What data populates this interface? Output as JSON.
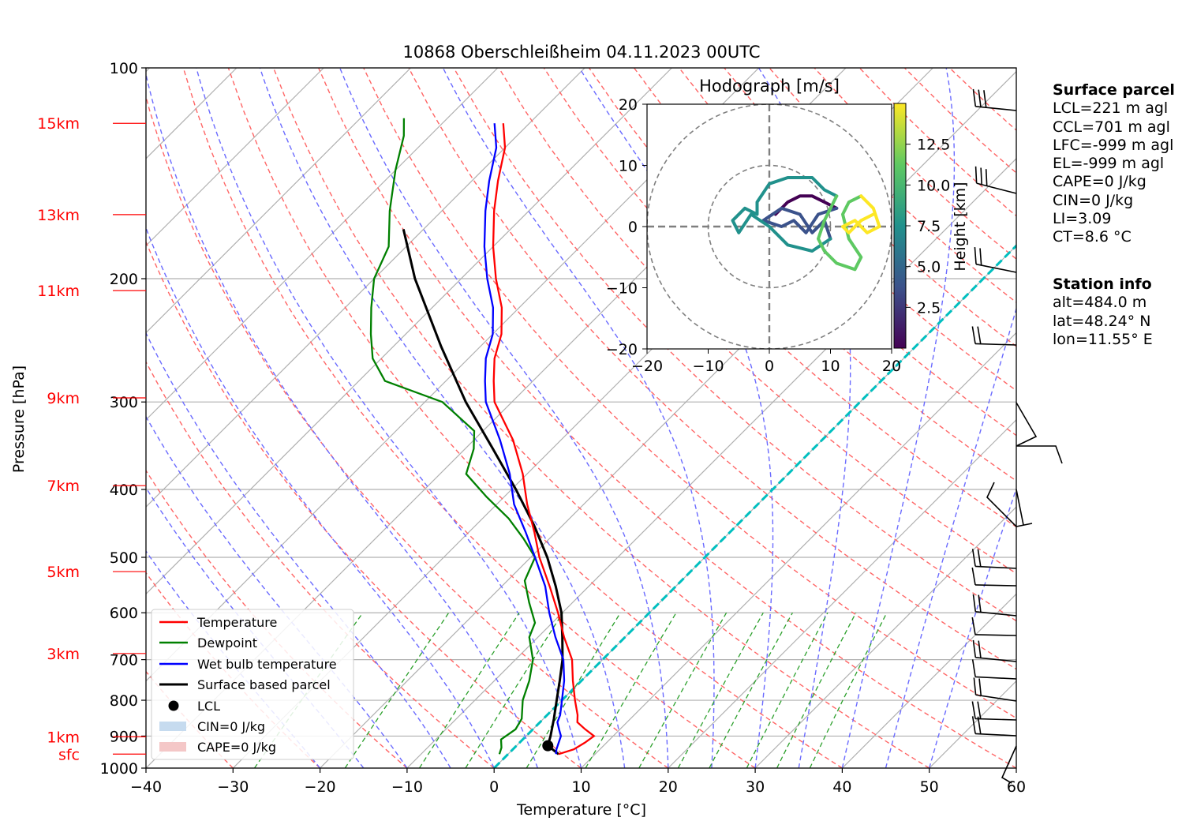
{
  "title": "10868 Oberschleißheim 04.11.2023 00UTC",
  "axes": {
    "xlabel": "Temperature [°C]",
    "ylabel": "Pressure [hPa]",
    "x_ticks": [
      "−40",
      "−30",
      "−20",
      "−10",
      "0",
      "10",
      "20",
      "30",
      "40",
      "50",
      "60"
    ],
    "y_ticks": [
      "100",
      "200",
      "300",
      "400",
      "500",
      "600",
      "700",
      "800",
      "900",
      "1000"
    ],
    "height_ticks": [
      "15km",
      "13km",
      "11km",
      "9km",
      "7km",
      "5km",
      "3km",
      "1km",
      "sfc"
    ]
  },
  "colors": {
    "temperature": "#ff0000",
    "dewpoint": "#008000",
    "wetbulb": "#0000ff",
    "parcel": "#000000",
    "zero_isotherm": "#00bfbf",
    "height_labels": "#ff0000",
    "dry_adiabat": "#ff6666",
    "moist_adiabat": "#6b6bff",
    "mixing_ratio": "#2ca02c",
    "cin_fill": "#c6dbef",
    "cape_fill": "#f4c7c7"
  },
  "legend": {
    "items": [
      "Temperature",
      "Dewpoint",
      "Wet bulb temperature",
      "Surface based parcel",
      "LCL",
      "CIN=0 J/kg",
      "CAPE=0 J/kg"
    ]
  },
  "hodograph": {
    "title": "Hodograph [m/s]",
    "ticks": [
      "−20",
      "−10",
      "0",
      "10",
      "20"
    ],
    "colorbar_label": "Height [km]",
    "colorbar_ticks": [
      "12.5",
      "10.0",
      "7.5",
      "5.0",
      "2.5"
    ]
  },
  "info": {
    "surface_header": "Surface parcel",
    "surface_lines": [
      "LCL=221 m agl",
      "CCL=701 m agl",
      "LFC=-999 m agl",
      "EL=-999 m agl",
      "CAPE=0 J/kg",
      "CIN=0 J/kg",
      "LI=3.09",
      "CT=8.6 °C"
    ],
    "station_header": "Station info",
    "station_lines": [
      "alt=484.0 m",
      "lat=48.24° N",
      "lon=11.55° E"
    ]
  },
  "chart_data": {
    "type": "line",
    "diagram": "skew-T log-p",
    "xlim": [
      -40,
      60
    ],
    "ylim_hPa": [
      1000,
      100
    ],
    "series": [
      {
        "name": "Temperature",
        "points": [
          [
            955,
            5.8
          ],
          [
            940,
            7.0
          ],
          [
            920,
            7.5
          ],
          [
            900,
            7.8
          ],
          [
            880,
            6.0
          ],
          [
            860,
            4.3
          ],
          [
            840,
            3.5
          ],
          [
            800,
            1.5
          ],
          [
            750,
            -1.0
          ],
          [
            700,
            -3.5
          ],
          [
            650,
            -7.0
          ],
          [
            600,
            -10.5
          ],
          [
            550,
            -14.5
          ],
          [
            500,
            -19.0
          ],
          [
            460,
            -22.5
          ],
          [
            420,
            -26.5
          ],
          [
            380,
            -30.5
          ],
          [
            340,
            -35.5
          ],
          [
            300,
            -42.0
          ],
          [
            280,
            -44.5
          ],
          [
            260,
            -47.0
          ],
          [
            240,
            -49.0
          ],
          [
            220,
            -52.0
          ],
          [
            200,
            -56.0
          ],
          [
            180,
            -60.0
          ],
          [
            160,
            -64.0
          ],
          [
            145,
            -67.0
          ],
          [
            130,
            -70.0
          ],
          [
            120,
            -73.0
          ]
        ]
      },
      {
        "name": "Dewpoint",
        "points": [
          [
            955,
            -1.0
          ],
          [
            935,
            -1.5
          ],
          [
            910,
            -2.5
          ],
          [
            880,
            -2.0
          ],
          [
            850,
            -2.5
          ],
          [
            800,
            -4.5
          ],
          [
            750,
            -6.0
          ],
          [
            700,
            -8.0
          ],
          [
            650,
            -11.0
          ],
          [
            620,
            -12.0
          ],
          [
            580,
            -15.0
          ],
          [
            540,
            -18.0
          ],
          [
            500,
            -19.5
          ],
          [
            470,
            -23.0
          ],
          [
            440,
            -27.0
          ],
          [
            410,
            -32.0
          ],
          [
            380,
            -37.0
          ],
          [
            350,
            -39.0
          ],
          [
            330,
            -41.0
          ],
          [
            300,
            -48.0
          ],
          [
            280,
            -57.0
          ],
          [
            260,
            -61.0
          ],
          [
            240,
            -64.0
          ],
          [
            220,
            -67.0
          ],
          [
            200,
            -70.0
          ],
          [
            180,
            -72.0
          ],
          [
            160,
            -76.0
          ],
          [
            140,
            -80.0
          ],
          [
            125,
            -83.0
          ],
          [
            118,
            -85.0
          ]
        ]
      },
      {
        "name": "Wet bulb temperature",
        "points": [
          [
            955,
            5.5
          ],
          [
            940,
            5.0
          ],
          [
            920,
            4.5
          ],
          [
            900,
            4.0
          ],
          [
            880,
            3.0
          ],
          [
            860,
            2.0
          ],
          [
            840,
            1.5
          ],
          [
            800,
            0.0
          ],
          [
            750,
            -2.0
          ],
          [
            700,
            -4.5
          ],
          [
            650,
            -8.0
          ],
          [
            600,
            -11.5
          ],
          [
            550,
            -15.0
          ],
          [
            500,
            -19.5
          ],
          [
            460,
            -23.5
          ],
          [
            420,
            -28.0
          ],
          [
            380,
            -32.0
          ],
          [
            340,
            -37.0
          ],
          [
            300,
            -43.0
          ],
          [
            280,
            -45.5
          ],
          [
            260,
            -48.0
          ],
          [
            240,
            -50.0
          ],
          [
            220,
            -53.0
          ],
          [
            200,
            -57.0
          ],
          [
            180,
            -61.0
          ],
          [
            160,
            -65.0
          ],
          [
            145,
            -68.0
          ],
          [
            130,
            -71.0
          ],
          [
            120,
            -74.0
          ]
        ]
      },
      {
        "name": "Surface based parcel",
        "points": [
          [
            955,
            5.8
          ],
          [
            929,
            3.6
          ],
          [
            900,
            2.8
          ],
          [
            850,
            1.2
          ],
          [
            800,
            -0.6
          ],
          [
            750,
            -2.5
          ],
          [
            700,
            -4.6
          ],
          [
            650,
            -7.2
          ],
          [
            600,
            -10.1
          ],
          [
            550,
            -13.8
          ],
          [
            500,
            -18.1
          ],
          [
            450,
            -23.3
          ],
          [
            400,
            -29.5
          ],
          [
            350,
            -36.8
          ],
          [
            300,
            -45.3
          ],
          [
            250,
            -54.5
          ],
          [
            200,
            -65.3
          ],
          [
            170,
            -72.3
          ]
        ]
      }
    ],
    "lcl": {
      "pressure_hPa": 929,
      "temperature_C": 3.6
    }
  }
}
